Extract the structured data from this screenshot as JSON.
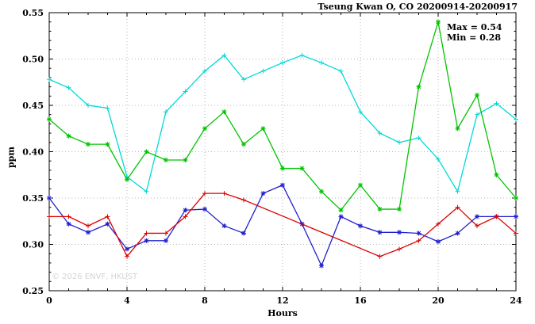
{
  "page": {
    "title": "Tseung Kwan O, CO 20200914-20200917"
  },
  "watermark": "© 2026 ENVF, HKUST",
  "annotation": {
    "max_label": "Max = 0.54",
    "min_label": "Min = 0.28"
  },
  "chart_data": {
    "type": "line",
    "title": "Tseung Kwan O, CO 20200914-20200917",
    "xlabel": "Hours",
    "ylabel": "ppm",
    "xlim": [
      0,
      24
    ],
    "ylim": [
      0.25,
      0.55
    ],
    "xticks": [
      0,
      4,
      8,
      12,
      16,
      20,
      24
    ],
    "x_minor_step": 1,
    "yticks": [
      0.25,
      0.3,
      0.35,
      0.4,
      0.45,
      0.5,
      0.55
    ],
    "y_minor_step": 0.01,
    "grid": true,
    "legend_position": "none",
    "annotations": [
      "Max = 0.54",
      "Min = 0.28"
    ],
    "max_value": 0.54,
    "min_value": 0.28,
    "x": [
      0,
      1,
      2,
      3,
      4,
      5,
      6,
      7,
      8,
      9,
      10,
      11,
      12,
      13,
      14,
      15,
      16,
      17,
      18,
      19,
      20,
      21,
      22,
      23,
      24
    ],
    "series": [
      {
        "name": "series-1",
        "color": "#00d9d9",
        "marker": "plus",
        "values": [
          0.478,
          0.469,
          0.45,
          0.447,
          0.373,
          0.357,
          0.443,
          0.465,
          0.487,
          0.504,
          0.478,
          0.487,
          0.496,
          0.504,
          0.496,
          0.487,
          0.443,
          0.42,
          0.41,
          0.415,
          0.392,
          0.357,
          0.44,
          0.452,
          0.435
        ]
      },
      {
        "name": "series-2",
        "color": "#00c400",
        "marker": "star",
        "values": [
          0.435,
          0.417,
          0.408,
          0.408,
          0.37,
          0.4,
          0.391,
          0.391,
          0.425,
          0.443,
          0.408,
          0.425,
          0.382,
          0.382,
          0.357,
          0.337,
          0.364,
          0.338,
          0.338,
          0.47,
          0.54,
          0.425,
          0.461,
          0.375,
          0.35
        ]
      },
      {
        "name": "series-3",
        "color": "#2020d0",
        "marker": "star",
        "values": [
          0.35,
          0.322,
          0.313,
          0.322,
          0.295,
          0.304,
          0.304,
          0.337,
          0.338,
          0.32,
          0.312,
          0.355,
          0.364,
          0.322,
          0.277,
          0.33,
          0.32,
          0.313,
          0.313,
          0.312,
          0.303,
          0.312,
          0.33,
          0.33,
          0.33
        ]
      },
      {
        "name": "series-4",
        "color": "#dc0000",
        "marker": "plus",
        "values": [
          0.33,
          0.33,
          0.32,
          0.33,
          0.287,
          0.312,
          0.312,
          0.33,
          0.355,
          0.355,
          0.348,
          null,
          null,
          null,
          null,
          null,
          null,
          0.287,
          0.295,
          0.304,
          0.322,
          0.34,
          0.32,
          0.33,
          0.312
        ]
      }
    ]
  }
}
